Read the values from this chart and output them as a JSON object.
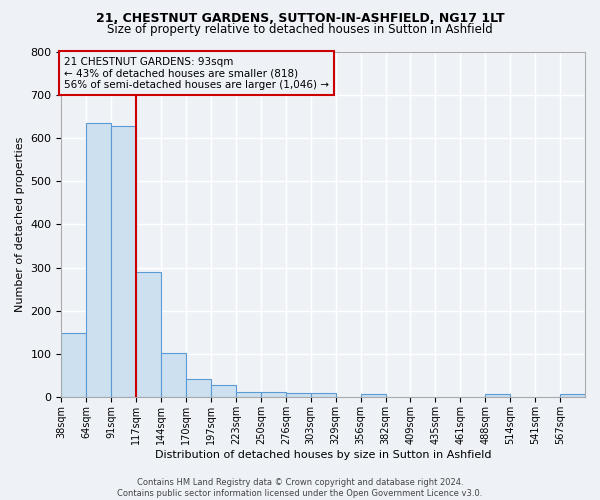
{
  "title1": "21, CHESTNUT GARDENS, SUTTON-IN-ASHFIELD, NG17 1LT",
  "title2": "Size of property relative to detached houses in Sutton in Ashfield",
  "xlabel": "Distribution of detached houses by size in Sutton in Ashfield",
  "ylabel": "Number of detached properties",
  "bar_values": [
    150,
    635,
    628,
    289,
    103,
    42,
    29,
    12,
    12,
    11,
    11,
    0,
    8,
    0,
    0,
    0,
    0,
    8,
    0,
    0,
    8
  ],
  "bin_labels": [
    "38sqm",
    "64sqm",
    "91sqm",
    "117sqm",
    "144sqm",
    "170sqm",
    "197sqm",
    "223sqm",
    "250sqm",
    "276sqm",
    "303sqm",
    "329sqm",
    "356sqm",
    "382sqm",
    "409sqm",
    "435sqm",
    "461sqm",
    "488sqm",
    "514sqm",
    "541sqm",
    "567sqm"
  ],
  "bar_color": "#cde0f0",
  "bar_edge_color": "#5b9bd5",
  "property_line_x_label": "91sqm",
  "property_line_bin_index": 2,
  "property_line_label": "21 CHESTNUT GARDENS: 93sqm",
  "annotation_line1": "← 43% of detached houses are smaller (818)",
  "annotation_line2": "56% of semi-detached houses are larger (1,046) →",
  "annotation_box_color": "#cc0000",
  "ylim": [
    0,
    800
  ],
  "yticks": [
    0,
    100,
    200,
    300,
    400,
    500,
    600,
    700,
    800
  ],
  "footer1": "Contains HM Land Registry data © Crown copyright and database right 2024.",
  "footer2": "Contains public sector information licensed under the Open Government Licence v3.0.",
  "bg_color": "#eef2f7",
  "grid_color": "#ffffff",
  "title_fontsize": 9,
  "subtitle_fontsize": 8.5
}
